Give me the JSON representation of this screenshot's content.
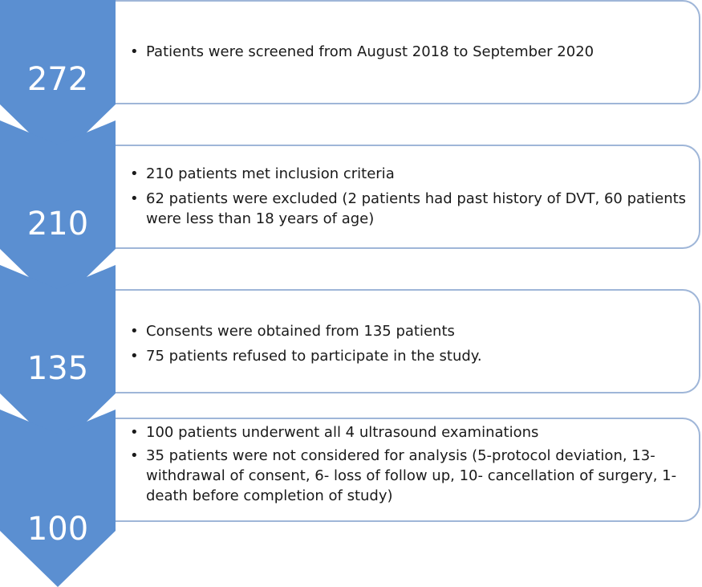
{
  "colors": {
    "chevron": "#5b8fd1",
    "card_border": "#9fb6d8",
    "text": "#1a1a1a"
  },
  "steps": [
    {
      "count": "272",
      "bullets": [
        "Patients were screened from August 2018 to September 2020"
      ]
    },
    {
      "count": "210",
      "bullets": [
        "210 patients met inclusion criteria",
        "62 patients were excluded (2 patients had past history of DVT, 60 patients were less than 18 years of age)"
      ]
    },
    {
      "count": "135",
      "bullets": [
        "Consents were obtained from 135 patients",
        "75 patients refused to participate in the study."
      ]
    },
    {
      "count": "100",
      "bullets": [
        "100 patients underwent all 4 ultrasound examinations",
        "35 patients were not considered for analysis (5-protocol deviation, 13- withdrawal of consent, 6- loss of follow up, 10- cancellation of surgery, 1- death before completion of study)"
      ]
    }
  ]
}
